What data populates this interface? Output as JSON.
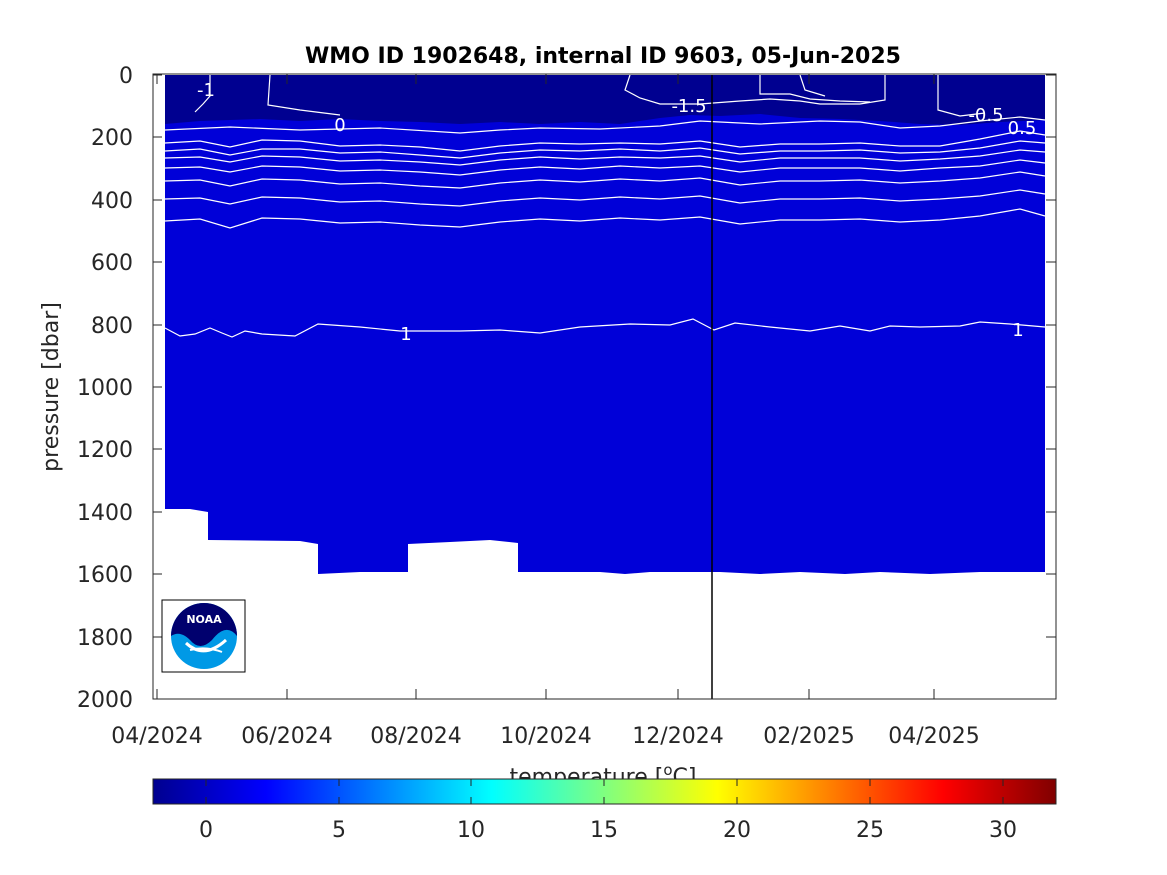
{
  "chart_data": {
    "type": "heatmap",
    "title": "WMO ID 1902648, internal ID 9603, 05-Jun-2025",
    "ylabel": "pressure [dbar]",
    "colorbar_label": "temperature [°C]",
    "colorbar_label_parts": {
      "prefix": "temperature [",
      "sup": "o",
      "suffix": "C]"
    },
    "y_axis": {
      "reversed": true,
      "ylim": [
        0,
        2000
      ],
      "ticks": [
        "0",
        "200",
        "400",
        "600",
        "800",
        "1000",
        "1200",
        "1400",
        "1600",
        "1800",
        "2000"
      ]
    },
    "x_axis": {
      "ticks": [
        "04/2024",
        "06/2024",
        "08/2024",
        "10/2024",
        "12/2024",
        "02/2025",
        "04/2025"
      ]
    },
    "colorbar": {
      "clim": [
        -2,
        32
      ],
      "ticks": [
        "0",
        "5",
        "10",
        "15",
        "20",
        "25",
        "30"
      ],
      "colormap": "jet"
    },
    "fill_color_deep": "#0000d8",
    "fill_color_surface": "#000090",
    "contour_levels_labeled": [
      "-1.5",
      "-1",
      "-0.5",
      "0",
      "0.5",
      "1"
    ],
    "profile_bottom_pressures": [
      1390,
      1390,
      1490,
      1490,
      1490,
      1600,
      1590,
      1590,
      1500,
      1490,
      1590,
      1590,
      1590,
      1590,
      1590,
      1600,
      1590,
      1590,
      1600,
      1590
    ]
  },
  "logo": {
    "text": "NOAA"
  }
}
